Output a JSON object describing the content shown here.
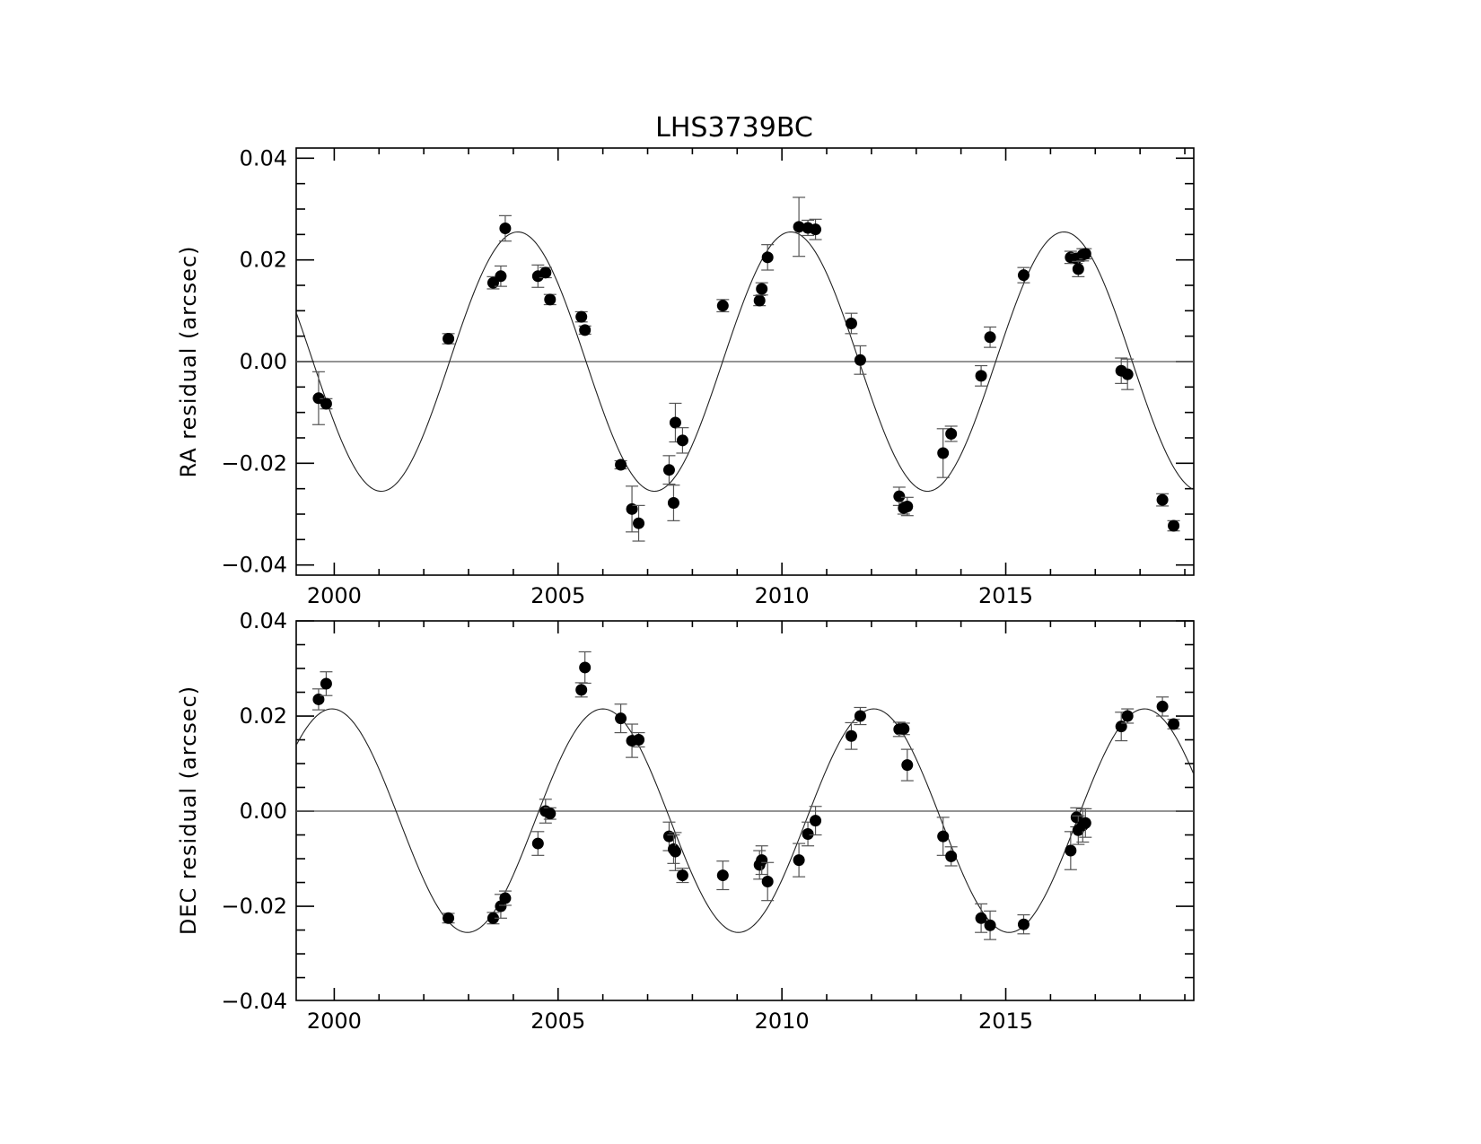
{
  "chart_data": {
    "type": "scatter",
    "title": "LHS3739BC",
    "xlim": [
      1999.15,
      2019.2
    ],
    "x_ticks": [
      2000,
      2005,
      2010,
      2015
    ],
    "x_minor_step": 1,
    "panels": [
      {
        "name": "ra",
        "ylabel": "RA residual (arcsec)",
        "ylim": [
          -0.042,
          0.042
        ],
        "y_ticks": [
          0.04,
          0.02,
          0.0,
          -0.02,
          -0.04
        ],
        "y_tick_labels": [
          "0.04",
          "0.02",
          "0.00",
          "−0.02",
          "−0.04"
        ],
        "y_minor_step": 0.005,
        "zero_line": true,
        "model": {
          "amplitude": 0.0255,
          "period": 6.1,
          "peak_x": 2004.1
        },
        "points": [
          {
            "x": 1999.65,
            "y": -0.0072,
            "err": 0.0052
          },
          {
            "x": 1999.82,
            "y": -0.0083,
            "err": 0.001
          },
          {
            "x": 2002.55,
            "y": 0.0045,
            "err": 0.001
          },
          {
            "x": 2003.55,
            "y": 0.0155,
            "err": 0.0012
          },
          {
            "x": 2003.72,
            "y": 0.0168,
            "err": 0.002
          },
          {
            "x": 2003.82,
            "y": 0.0262,
            "err": 0.0025
          },
          {
            "x": 2004.55,
            "y": 0.0168,
            "err": 0.0022
          },
          {
            "x": 2004.72,
            "y": 0.0175,
            "err": 0.001
          },
          {
            "x": 2004.82,
            "y": 0.0122,
            "err": 0.001
          },
          {
            "x": 2005.52,
            "y": 0.0088,
            "err": 0.001
          },
          {
            "x": 2005.6,
            "y": 0.0062,
            "err": 0.0008
          },
          {
            "x": 2006.4,
            "y": -0.0203,
            "err": 0.0008
          },
          {
            "x": 2006.65,
            "y": -0.029,
            "err": 0.0045
          },
          {
            "x": 2006.8,
            "y": -0.0318,
            "err": 0.0035
          },
          {
            "x": 2007.48,
            "y": -0.0213,
            "err": 0.0028
          },
          {
            "x": 2007.58,
            "y": -0.0278,
            "err": 0.0035
          },
          {
            "x": 2007.62,
            "y": -0.012,
            "err": 0.0038
          },
          {
            "x": 2007.78,
            "y": -0.0155,
            "err": 0.0025
          },
          {
            "x": 2008.68,
            "y": 0.011,
            "err": 0.0012
          },
          {
            "x": 2009.5,
            "y": 0.012,
            "err": 0.001
          },
          {
            "x": 2009.55,
            "y": 0.0143,
            "err": 0.0012
          },
          {
            "x": 2009.68,
            "y": 0.0205,
            "err": 0.0025
          },
          {
            "x": 2010.38,
            "y": 0.0265,
            "err": 0.0058
          },
          {
            "x": 2010.58,
            "y": 0.0263,
            "err": 0.0015
          },
          {
            "x": 2010.75,
            "y": 0.026,
            "err": 0.002
          },
          {
            "x": 2011.55,
            "y": 0.0075,
            "err": 0.002
          },
          {
            "x": 2011.75,
            "y": 0.0003,
            "err": 0.0028
          },
          {
            "x": 2012.62,
            "y": -0.0265,
            "err": 0.0018
          },
          {
            "x": 2012.72,
            "y": -0.0288,
            "err": 0.0012
          },
          {
            "x": 2012.8,
            "y": -0.0285,
            "err": 0.0018
          },
          {
            "x": 2013.6,
            "y": -0.018,
            "err": 0.0048
          },
          {
            "x": 2013.78,
            "y": -0.0142,
            "err": 0.0015
          },
          {
            "x": 2014.45,
            "y": -0.0028,
            "err": 0.002
          },
          {
            "x": 2014.65,
            "y": 0.0048,
            "err": 0.002
          },
          {
            "x": 2015.4,
            "y": 0.017,
            "err": 0.0015
          },
          {
            "x": 2016.45,
            "y": 0.0205,
            "err": 0.0012
          },
          {
            "x": 2016.58,
            "y": 0.0203,
            "err": 0.001
          },
          {
            "x": 2016.62,
            "y": 0.0182,
            "err": 0.0015
          },
          {
            "x": 2016.72,
            "y": 0.021,
            "err": 0.0012
          },
          {
            "x": 2016.78,
            "y": 0.0212,
            "err": 0.001
          },
          {
            "x": 2017.58,
            "y": -0.0018,
            "err": 0.0025
          },
          {
            "x": 2017.72,
            "y": -0.0025,
            "err": 0.003
          },
          {
            "x": 2018.5,
            "y": -0.0272,
            "err": 0.0012
          },
          {
            "x": 2018.75,
            "y": -0.0323,
            "err": 0.001
          }
        ]
      },
      {
        "name": "dec",
        "ylabel": "DEC residual (arcsec)",
        "ylim": [
          -0.0398,
          0.04
        ],
        "y_ticks": [
          0.04,
          0.02,
          0.0,
          -0.02,
          -0.04
        ],
        "y_tick_labels": [
          "0.04",
          "0.02",
          "0.00",
          "−0.02",
          "−0.04"
        ],
        "y_minor_step": 0.005,
        "zero_line": true,
        "model": {
          "amplitude": 0.0235,
          "mean": -0.002,
          "period": 6.05,
          "peak_x": 1999.95
        },
        "points": [
          {
            "x": 1999.65,
            "y": 0.0235,
            "err": 0.0022
          },
          {
            "x": 1999.82,
            "y": 0.0268,
            "err": 0.0025
          },
          {
            "x": 2002.55,
            "y": -0.0225,
            "err": 0.001
          },
          {
            "x": 2003.55,
            "y": -0.0225,
            "err": 0.0012
          },
          {
            "x": 2003.72,
            "y": -0.02,
            "err": 0.0025
          },
          {
            "x": 2003.82,
            "y": -0.0183,
            "err": 0.0015
          },
          {
            "x": 2004.55,
            "y": -0.0068,
            "err": 0.0025
          },
          {
            "x": 2004.72,
            "y": 0.0,
            "err": 0.0025
          },
          {
            "x": 2004.82,
            "y": -0.0005,
            "err": 0.0012
          },
          {
            "x": 2005.52,
            "y": 0.0255,
            "err": 0.0015
          },
          {
            "x": 2005.6,
            "y": 0.0302,
            "err": 0.0033
          },
          {
            "x": 2006.4,
            "y": 0.0195,
            "err": 0.003
          },
          {
            "x": 2006.65,
            "y": 0.0148,
            "err": 0.0035
          },
          {
            "x": 2006.8,
            "y": 0.015,
            "err": 0.0015
          },
          {
            "x": 2007.48,
            "y": -0.0053,
            "err": 0.003
          },
          {
            "x": 2007.58,
            "y": -0.008,
            "err": 0.003
          },
          {
            "x": 2007.62,
            "y": -0.0085,
            "err": 0.004
          },
          {
            "x": 2007.78,
            "y": -0.0135,
            "err": 0.0015
          },
          {
            "x": 2008.68,
            "y": -0.0135,
            "err": 0.003
          },
          {
            "x": 2009.5,
            "y": -0.0113,
            "err": 0.003
          },
          {
            "x": 2009.55,
            "y": -0.0103,
            "err": 0.003
          },
          {
            "x": 2009.68,
            "y": -0.0148,
            "err": 0.004
          },
          {
            "x": 2010.38,
            "y": -0.0103,
            "err": 0.0035
          },
          {
            "x": 2010.58,
            "y": -0.0048,
            "err": 0.0025
          },
          {
            "x": 2010.75,
            "y": -0.002,
            "err": 0.003
          },
          {
            "x": 2011.55,
            "y": 0.0158,
            "err": 0.0028
          },
          {
            "x": 2011.75,
            "y": 0.02,
            "err": 0.0018
          },
          {
            "x": 2012.62,
            "y": 0.0172,
            "err": 0.0015
          },
          {
            "x": 2012.72,
            "y": 0.0173,
            "err": 0.0012
          },
          {
            "x": 2012.8,
            "y": 0.0097,
            "err": 0.0033
          },
          {
            "x": 2013.6,
            "y": -0.0053,
            "err": 0.004
          },
          {
            "x": 2013.78,
            "y": -0.0095,
            "err": 0.002
          },
          {
            "x": 2014.45,
            "y": -0.0225,
            "err": 0.003
          },
          {
            "x": 2014.65,
            "y": -0.024,
            "err": 0.003
          },
          {
            "x": 2015.4,
            "y": -0.0238,
            "err": 0.002
          },
          {
            "x": 2016.45,
            "y": -0.0083,
            "err": 0.004
          },
          {
            "x": 2016.58,
            "y": -0.0013,
            "err": 0.002
          },
          {
            "x": 2016.62,
            "y": -0.004,
            "err": 0.003
          },
          {
            "x": 2016.72,
            "y": -0.003,
            "err": 0.0035
          },
          {
            "x": 2016.78,
            "y": -0.0025,
            "err": 0.003
          },
          {
            "x": 2017.58,
            "y": 0.0178,
            "err": 0.003
          },
          {
            "x": 2017.72,
            "y": 0.02,
            "err": 0.0015
          },
          {
            "x": 2018.5,
            "y": 0.022,
            "err": 0.002
          },
          {
            "x": 2018.75,
            "y": 0.0183,
            "err": 0.001
          }
        ]
      }
    ]
  }
}
